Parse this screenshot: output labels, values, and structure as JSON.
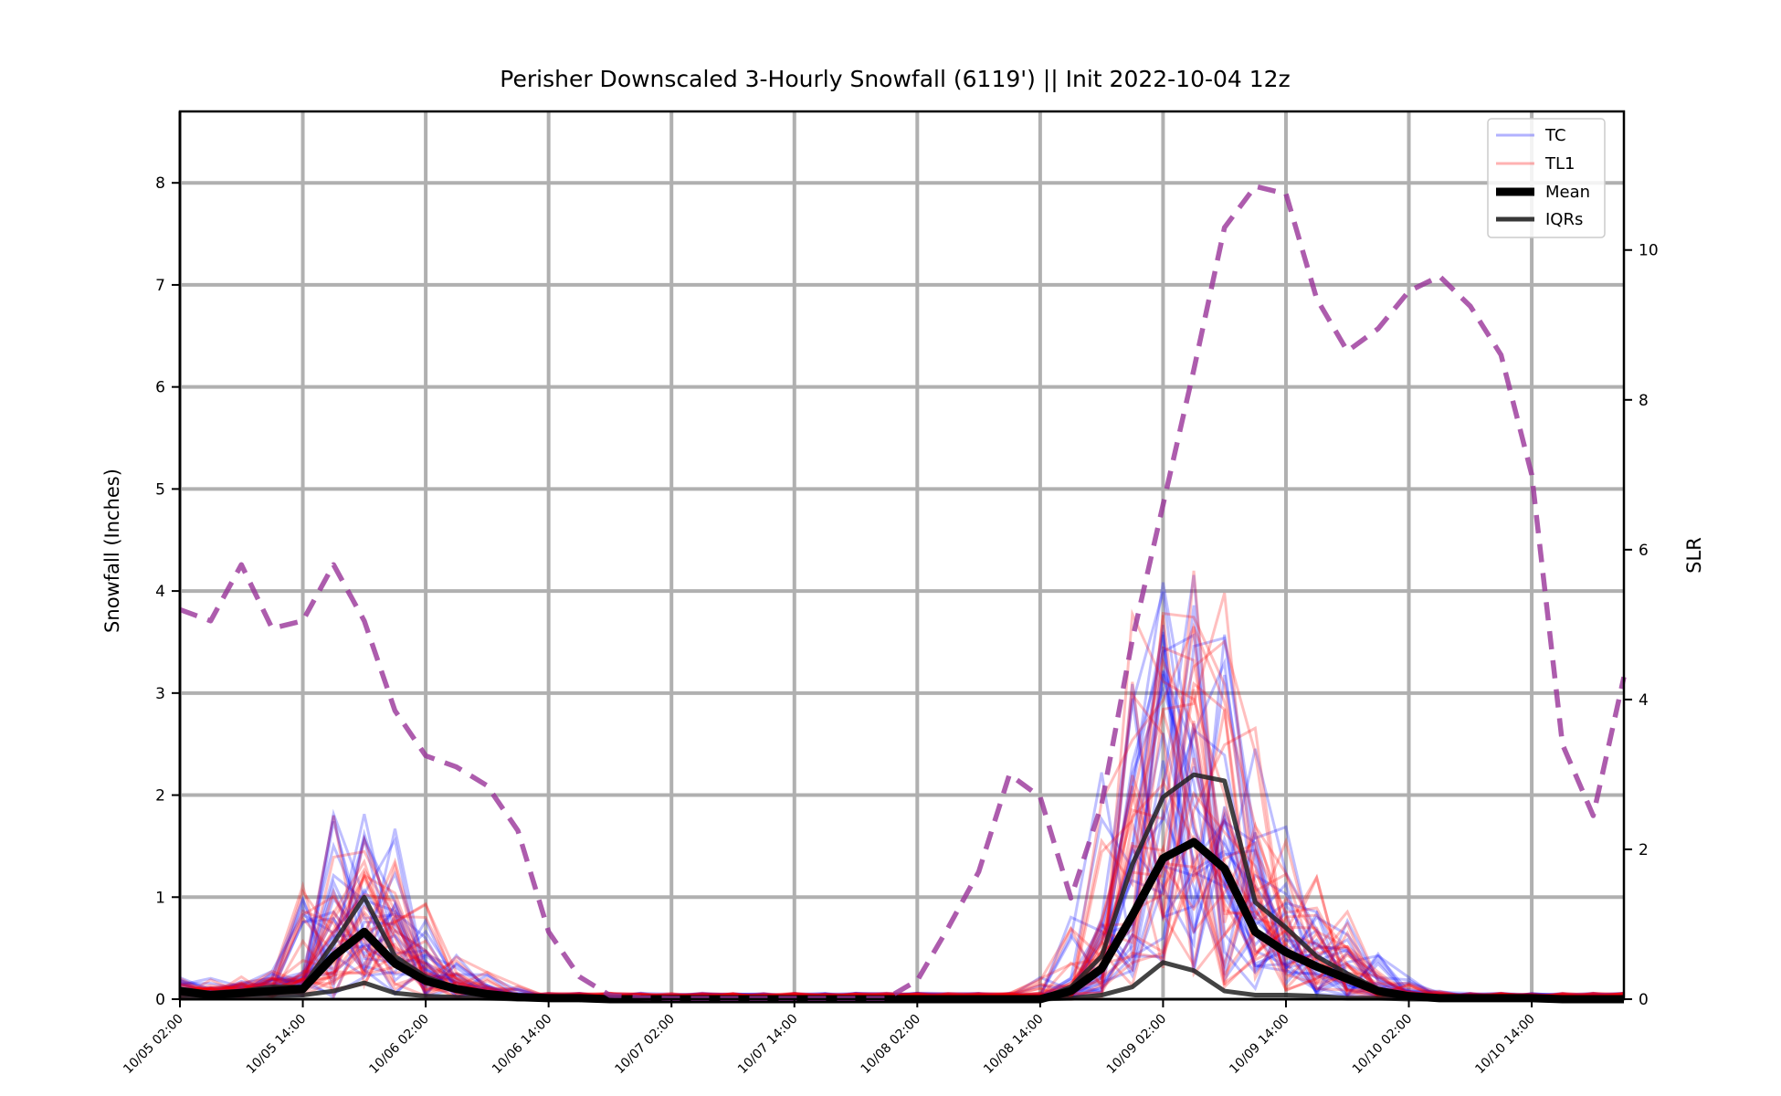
{
  "chart_data": {
    "type": "line",
    "title": "Perisher Downscaled 3-Hourly Snowfall (6119') || Init 2022-10-04 12z",
    "ylabel": "Snowfall (Inches)",
    "y2label": "SLR",
    "ylim": [
      0,
      8.7
    ],
    "y2lim": [
      0,
      11.85
    ],
    "yticks": [
      0,
      1,
      2,
      3,
      4,
      5,
      6,
      7,
      8
    ],
    "y2ticks": [
      0,
      2,
      4,
      6,
      8,
      10
    ],
    "xrange_hours": [
      0,
      141
    ],
    "xticks": [
      {
        "label": "10/05 02:00",
        "hour": 0
      },
      {
        "label": "10/05 14:00",
        "hour": 12
      },
      {
        "label": "10/06 02:00",
        "hour": 24
      },
      {
        "label": "10/06 14:00",
        "hour": 36
      },
      {
        "label": "10/07 02:00",
        "hour": 48
      },
      {
        "label": "10/07 14:00",
        "hour": 60
      },
      {
        "label": "10/08 02:00",
        "hour": 72
      },
      {
        "label": "10/08 14:00",
        "hour": 84
      },
      {
        "label": "10/09 02:00",
        "hour": 96
      },
      {
        "label": "10/09 14:00",
        "hour": 108
      },
      {
        "label": "10/10 02:00",
        "hour": 120
      },
      {
        "label": "10/10 14:00",
        "hour": 132
      }
    ],
    "grid": true,
    "legend_position": "top-right",
    "legend": [
      {
        "label": "TC",
        "color": "#0000ff",
        "style": "thin-translucent"
      },
      {
        "label": "TL1",
        "color": "#ff0000",
        "style": "thin-translucent"
      },
      {
        "label": "Mean",
        "color": "#000000",
        "style": "thick"
      },
      {
        "label": "IQRs",
        "color": "#333333",
        "style": "medium"
      }
    ],
    "colors": {
      "tc": "#0000ff",
      "tl1": "#ff0000",
      "mean": "#000000",
      "iqr": "#222222",
      "slr": "#993399",
      "grid": "#b0b0b0"
    },
    "x_hours": [
      0,
      3,
      6,
      9,
      12,
      15,
      18,
      21,
      24,
      27,
      30,
      33,
      36,
      39,
      42,
      45,
      48,
      51,
      54,
      57,
      60,
      63,
      66,
      69,
      72,
      75,
      78,
      81,
      84,
      87,
      90,
      93,
      96,
      99,
      102,
      105,
      108,
      111,
      114,
      117,
      120,
      123,
      126,
      129,
      132,
      135,
      138,
      141
    ],
    "series": [
      {
        "name": "Mean",
        "axis": "left",
        "values": [
          0.08,
          0.04,
          0.06,
          0.08,
          0.1,
          0.42,
          0.66,
          0.35,
          0.18,
          0.1,
          0.05,
          0.02,
          0.01,
          0.01,
          0.0,
          0.0,
          0.0,
          0.0,
          0.0,
          0.0,
          0.0,
          0.0,
          0.0,
          0.0,
          0.0,
          0.0,
          0.0,
          0.0,
          0.0,
          0.08,
          0.3,
          0.82,
          1.38,
          1.54,
          1.28,
          0.66,
          0.46,
          0.32,
          0.2,
          0.08,
          0.03,
          0.01,
          0.01,
          0.01,
          0.01,
          0.0,
          0.0,
          0.0
        ]
      },
      {
        "name": "IQRs",
        "axis": "left",
        "values": [
          0.1,
          0.06,
          0.08,
          0.12,
          0.12,
          0.55,
          1.0,
          0.42,
          0.22,
          0.11,
          0.05,
          0.02,
          0.01,
          0.01,
          0.0,
          0.0,
          0.0,
          0.0,
          0.0,
          0.0,
          0.0,
          0.0,
          0.0,
          0.0,
          0.0,
          0.0,
          0.0,
          0.0,
          0.0,
          0.12,
          0.42,
          1.32,
          1.98,
          2.2,
          2.14,
          0.95,
          0.7,
          0.42,
          0.25,
          0.1,
          0.04,
          0.02,
          0.01,
          0.01,
          0.01,
          0.0,
          0.0,
          0.0
        ]
      },
      {
        "name": "IQRs",
        "axis": "left",
        "values": [
          0.03,
          0.02,
          0.02,
          0.03,
          0.04,
          0.08,
          0.16,
          0.06,
          0.03,
          0.02,
          0.01,
          0.0,
          0.0,
          0.0,
          0.0,
          0.0,
          0.0,
          0.0,
          0.0,
          0.0,
          0.0,
          0.0,
          0.0,
          0.0,
          0.0,
          0.0,
          0.0,
          0.0,
          0.0,
          0.01,
          0.04,
          0.12,
          0.36,
          0.28,
          0.08,
          0.04,
          0.04,
          0.03,
          0.01,
          0.01,
          0.0,
          0.0,
          0.0,
          0.0,
          0.0,
          0.0,
          0.0,
          0.0
        ]
      },
      {
        "name": "SLR",
        "axis": "right",
        "values": [
          5.2,
          5.05,
          5.8,
          4.95,
          5.05,
          5.8,
          5.05,
          3.85,
          3.25,
          3.1,
          2.85,
          2.25,
          0.9,
          0.3,
          0.05,
          0.02,
          0.01,
          0.01,
          0.01,
          0.01,
          0.01,
          0.01,
          0.01,
          0.01,
          0.25,
          0.95,
          1.7,
          3.0,
          2.7,
          1.35,
          2.6,
          4.8,
          6.6,
          8.4,
          10.3,
          10.85,
          10.75,
          9.35,
          8.65,
          8.95,
          9.45,
          9.65,
          9.25,
          8.6,
          7.0,
          3.4,
          2.45,
          4.3
        ]
      }
    ]
  }
}
